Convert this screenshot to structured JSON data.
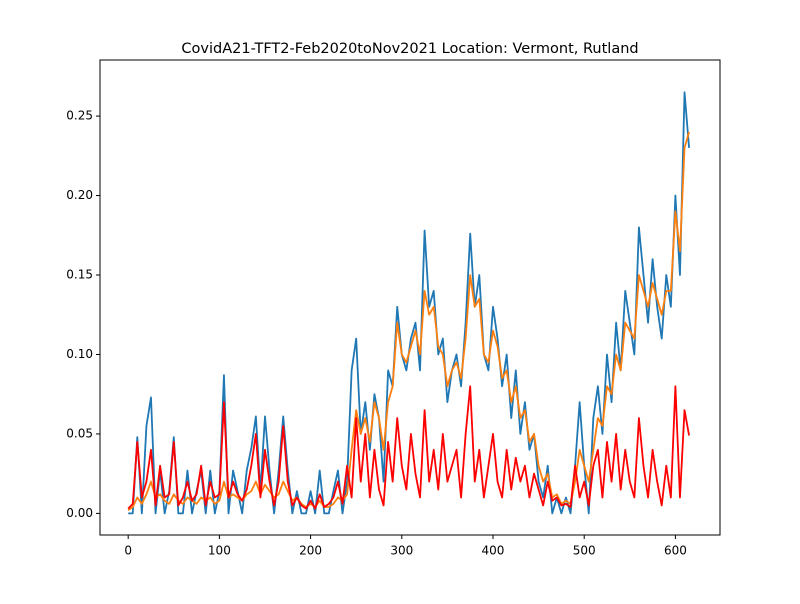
{
  "chart_data": {
    "type": "line",
    "title": "CovidA21-TFT2-Feb2020toNov2021 Location: Vermont, Rutland",
    "x": [
      0,
      5,
      10,
      15,
      20,
      25,
      30,
      35,
      40,
      45,
      50,
      55,
      60,
      65,
      70,
      75,
      80,
      85,
      90,
      95,
      100,
      105,
      110,
      115,
      120,
      125,
      130,
      135,
      140,
      145,
      150,
      155,
      160,
      165,
      170,
      175,
      180,
      185,
      190,
      195,
      200,
      205,
      210,
      215,
      220,
      225,
      230,
      235,
      240,
      245,
      250,
      255,
      260,
      265,
      270,
      275,
      280,
      285,
      290,
      295,
      300,
      305,
      310,
      315,
      320,
      325,
      330,
      335,
      340,
      345,
      350,
      355,
      360,
      365,
      370,
      375,
      380,
      385,
      390,
      395,
      400,
      405,
      410,
      415,
      420,
      425,
      430,
      435,
      440,
      445,
      450,
      455,
      460,
      465,
      470,
      475,
      480,
      485,
      490,
      495,
      500,
      505,
      510,
      515,
      520,
      525,
      530,
      535,
      540,
      545,
      550,
      555,
      560,
      565,
      570,
      575,
      580,
      585,
      590,
      595,
      600,
      605,
      610,
      615
    ],
    "series": [
      {
        "color": "#1f77b4",
        "values": [
          0.0,
          0.0,
          0.048,
          0.0,
          0.055,
          0.073,
          0.0,
          0.027,
          0.0,
          0.014,
          0.048,
          0.0,
          0.0,
          0.027,
          0.0,
          0.014,
          0.027,
          0.0,
          0.027,
          0.0,
          0.014,
          0.087,
          0.0,
          0.027,
          0.014,
          0.0,
          0.027,
          0.041,
          0.061,
          0.014,
          0.061,
          0.027,
          0.0,
          0.027,
          0.061,
          0.027,
          0.0,
          0.014,
          0.0,
          0.0,
          0.014,
          0.0,
          0.027,
          0.0,
          0.0,
          0.014,
          0.027,
          0.0,
          0.02,
          0.09,
          0.11,
          0.05,
          0.07,
          0.04,
          0.075,
          0.06,
          0.02,
          0.09,
          0.08,
          0.13,
          0.1,
          0.09,
          0.11,
          0.12,
          0.09,
          0.178,
          0.13,
          0.14,
          0.1,
          0.11,
          0.07,
          0.09,
          0.1,
          0.08,
          0.12,
          0.176,
          0.13,
          0.15,
          0.1,
          0.09,
          0.13,
          0.11,
          0.08,
          0.1,
          0.06,
          0.09,
          0.05,
          0.07,
          0.04,
          0.05,
          0.02,
          0.01,
          0.03,
          0.0,
          0.01,
          0.0,
          0.01,
          0.0,
          0.03,
          0.07,
          0.03,
          0.0,
          0.06,
          0.08,
          0.05,
          0.1,
          0.07,
          0.12,
          0.09,
          0.14,
          0.12,
          0.1,
          0.18,
          0.15,
          0.12,
          0.16,
          0.13,
          0.11,
          0.15,
          0.13,
          0.2,
          0.15,
          0.265,
          0.23
        ]
      },
      {
        "color": "#ff7f0e",
        "values": [
          0.002,
          0.004,
          0.01,
          0.006,
          0.012,
          0.02,
          0.01,
          0.012,
          0.008,
          0.006,
          0.012,
          0.008,
          0.006,
          0.01,
          0.008,
          0.006,
          0.01,
          0.008,
          0.01,
          0.006,
          0.008,
          0.02,
          0.01,
          0.012,
          0.01,
          0.008,
          0.012,
          0.014,
          0.02,
          0.012,
          0.018,
          0.014,
          0.01,
          0.012,
          0.02,
          0.014,
          0.008,
          0.01,
          0.006,
          0.004,
          0.006,
          0.004,
          0.008,
          0.004,
          0.004,
          0.006,
          0.01,
          0.008,
          0.012,
          0.04,
          0.065,
          0.05,
          0.06,
          0.045,
          0.07,
          0.06,
          0.04,
          0.07,
          0.08,
          0.12,
          0.1,
          0.095,
          0.105,
          0.115,
          0.1,
          0.14,
          0.125,
          0.13,
          0.105,
          0.1,
          0.08,
          0.09,
          0.095,
          0.085,
          0.11,
          0.15,
          0.13,
          0.135,
          0.1,
          0.095,
          0.115,
          0.105,
          0.085,
          0.09,
          0.07,
          0.08,
          0.06,
          0.065,
          0.045,
          0.05,
          0.03,
          0.02,
          0.025,
          0.01,
          0.012,
          0.006,
          0.008,
          0.006,
          0.02,
          0.04,
          0.03,
          0.02,
          0.04,
          0.06,
          0.055,
          0.08,
          0.075,
          0.1,
          0.09,
          0.12,
          0.115,
          0.11,
          0.15,
          0.14,
          0.13,
          0.145,
          0.135,
          0.125,
          0.14,
          0.14,
          0.19,
          0.165,
          0.23,
          0.24
        ]
      },
      {
        "color": "#ff0000",
        "values": [
          0.003,
          0.006,
          0.045,
          0.01,
          0.02,
          0.04,
          0.005,
          0.03,
          0.01,
          0.012,
          0.045,
          0.005,
          0.01,
          0.02,
          0.008,
          0.012,
          0.03,
          0.005,
          0.02,
          0.01,
          0.012,
          0.07,
          0.01,
          0.02,
          0.012,
          0.008,
          0.015,
          0.03,
          0.05,
          0.01,
          0.04,
          0.02,
          0.005,
          0.02,
          0.055,
          0.02,
          0.005,
          0.01,
          0.005,
          0.003,
          0.008,
          0.003,
          0.012,
          0.004,
          0.006,
          0.01,
          0.02,
          0.006,
          0.03,
          0.01,
          0.06,
          0.02,
          0.05,
          0.01,
          0.04,
          0.015,
          0.005,
          0.045,
          0.02,
          0.06,
          0.03,
          0.015,
          0.05,
          0.025,
          0.01,
          0.065,
          0.02,
          0.04,
          0.015,
          0.05,
          0.02,
          0.03,
          0.04,
          0.01,
          0.05,
          0.08,
          0.02,
          0.04,
          0.01,
          0.03,
          0.05,
          0.02,
          0.01,
          0.04,
          0.015,
          0.035,
          0.02,
          0.03,
          0.01,
          0.025,
          0.015,
          0.005,
          0.02,
          0.008,
          0.01,
          0.005,
          0.006,
          0.004,
          0.03,
          0.01,
          0.02,
          0.005,
          0.03,
          0.04,
          0.01,
          0.045,
          0.02,
          0.05,
          0.015,
          0.04,
          0.02,
          0.01,
          0.06,
          0.03,
          0.01,
          0.04,
          0.02,
          0.005,
          0.03,
          0.01,
          0.08,
          0.01,
          0.065,
          0.049
        ]
      }
    ],
    "xlim": [
      -30.9,
      648.9
    ],
    "ylim": [
      -0.0136,
      0.2853
    ],
    "xticks": [
      0,
      100,
      200,
      300,
      400,
      500,
      600
    ],
    "yticks": [
      {
        "value": 0,
        "label": "0.00"
      },
      0.05,
      {
        "value": 0.1,
        "label": "0.10"
      },
      0.15,
      {
        "value": 0.2,
        "label": "0.20"
      },
      0.25
    ]
  }
}
